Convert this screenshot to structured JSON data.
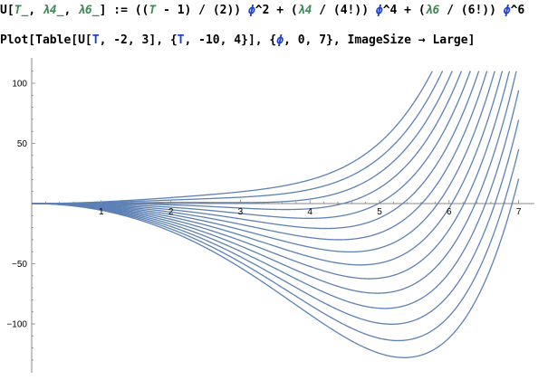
{
  "input_line_1": {
    "prefix": "U[",
    "arg1": "T_",
    "sep1": ", ",
    "arg2": "λ4_",
    "sep2": ", ",
    "arg3": "λ6_",
    "mid": "] := ((",
    "t": "T",
    "rest1": " - 1) / (2)) ",
    "phi1": "ϕ",
    "rest2": "^2 + (",
    "l4": "λ4",
    "rest3": " / (4!)) ",
    "phi2": "ϕ",
    "rest4": "^4 + (",
    "l6": "λ6",
    "rest5": " / (6!)) ",
    "phi3": "ϕ",
    "rest6": "^6"
  },
  "input_line_2": {
    "part1": "Plot[Table[U[",
    "t1": "T",
    "part2": ", -2, 3], {",
    "t2": "T",
    "part3": ", -10, 4}], {",
    "phi": "ϕ",
    "part4": ", 0, 7}, ImageSize → Large]"
  },
  "chart_data": {
    "type": "line",
    "title": "",
    "xlabel": "",
    "ylabel": "",
    "function": "U(T, λ4, λ6) = ((T - 1)/2) ϕ^2 + (λ4/4!) ϕ^4 + (λ6/6!) ϕ^6",
    "parameters": {
      "lambda4": -2,
      "lambda6": 3,
      "T_values": [
        -10,
        -9,
        -8,
        -7,
        -6,
        -5,
        -4,
        -3,
        -2,
        -1,
        0,
        1,
        2,
        3,
        4
      ]
    },
    "x_range": [
      0,
      7
    ],
    "ylim": [
      -140,
      110
    ],
    "x_ticks": [
      1,
      2,
      3,
      4,
      5,
      6,
      7
    ],
    "y_ticks": [
      -100,
      -50,
      50,
      100
    ],
    "x_tick_labels": [
      "1",
      "2",
      "3",
      "4",
      "5",
      "6",
      "7"
    ],
    "y_tick_labels": [
      "-100",
      "-50",
      "50",
      "100"
    ],
    "line_color": "#5e81b5",
    "grid": false
  }
}
